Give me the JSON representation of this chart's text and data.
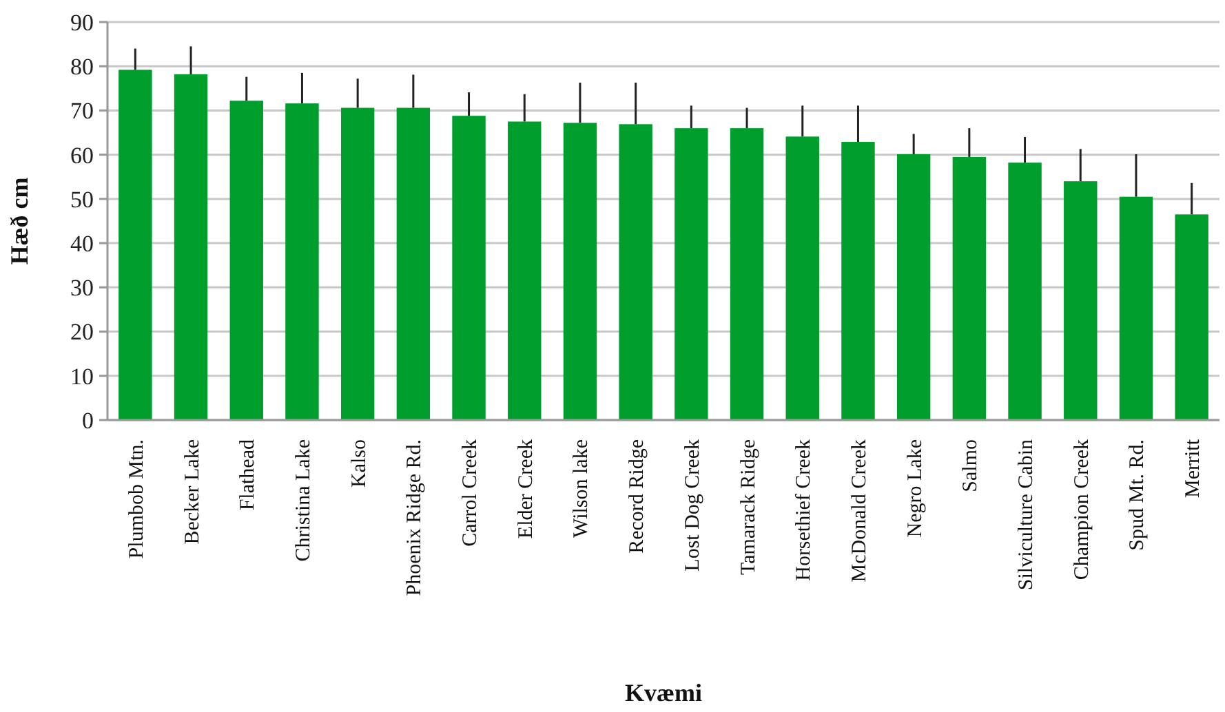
{
  "chart_data": {
    "type": "bar",
    "xlabel": "Kvæmi",
    "ylabel": "Hæð cm",
    "categories": [
      "Plumbob Mtn.",
      "Becker Lake",
      "Flathead",
      "Christina Lake",
      "Kalso",
      "Phoenix Ridge Rd.",
      "Carrol Creek",
      "Elder Creek",
      "Wilson lake",
      "Record Ridge",
      "Lost Dog Creek",
      "Tamarack Ridge",
      "Horsethief Creek",
      "McDonald Creek",
      "Negro Lake",
      "Salmo",
      "Silviculture Cabin",
      "Champion Creek",
      "Spud Mt. Rd.",
      "Merritt"
    ],
    "values": [
      79.2,
      78.2,
      72.2,
      71.6,
      70.6,
      70.6,
      68.8,
      67.5,
      67.2,
      66.9,
      66.0,
      66.0,
      64.1,
      62.9,
      60.1,
      59.5,
      58.2,
      54.0,
      50.5,
      46.5
    ],
    "errors": [
      [
        79.2,
        84.0
      ],
      [
        78.2,
        84.5
      ],
      [
        72.2,
        77.6
      ],
      [
        71.6,
        78.5
      ],
      [
        70.6,
        77.2
      ],
      [
        70.6,
        78.1
      ],
      [
        68.8,
        74.1
      ],
      [
        67.5,
        73.7
      ],
      [
        67.2,
        76.3
      ],
      [
        66.9,
        76.3
      ],
      [
        66.0,
        71.1
      ],
      [
        66.0,
        70.6
      ],
      [
        64.1,
        71.1
      ],
      [
        62.9,
        71.1
      ],
      [
        60.1,
        64.7
      ],
      [
        59.5,
        66.0
      ],
      [
        58.2,
        64.0
      ],
      [
        54.0,
        61.3
      ],
      [
        50.5,
        60.1
      ],
      [
        46.5,
        53.6
      ]
    ],
    "color": "#009e2d",
    "ylim": [
      0,
      90
    ],
    "yticks": [
      0,
      10,
      20,
      30,
      40,
      50,
      60,
      70,
      80,
      90
    ],
    "grid": "y"
  }
}
